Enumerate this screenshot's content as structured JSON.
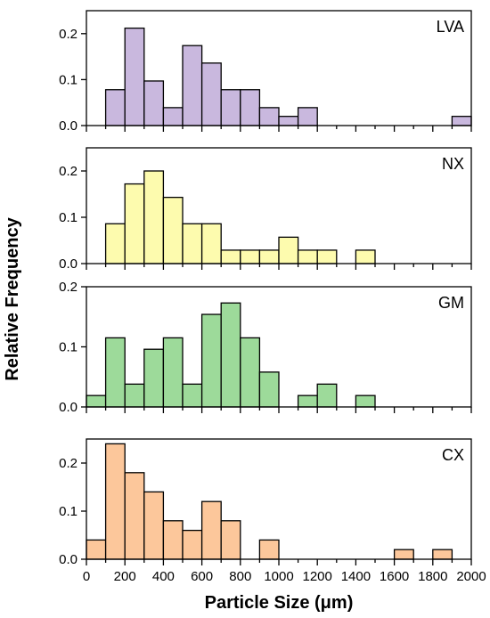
{
  "chart_data": {
    "type": "bar",
    "xlabel": "Particle Size (μm)",
    "ylabel": "Relative Frequency",
    "xlim": [
      0,
      2000
    ],
    "x_ticks": [
      "0",
      "200",
      "400",
      "600",
      "800",
      "1000",
      "1200",
      "1400",
      "1600",
      "1800",
      "2000"
    ],
    "bin_width": 100,
    "bin_starts": [
      0,
      100,
      200,
      300,
      400,
      500,
      600,
      700,
      800,
      900,
      1000,
      1100,
      1200,
      1300,
      1400,
      1500,
      1600,
      1700,
      1800,
      1900
    ],
    "grid": false,
    "legend": "none",
    "panels": [
      {
        "name": "LVA",
        "color": "#c9b8de",
        "ylim": [
          0,
          0.25
        ],
        "y_ticks": [
          "0.0",
          "0.1",
          "0.2"
        ],
        "values": [
          0,
          0.078,
          0.212,
          0.097,
          0.039,
          0.174,
          0.136,
          0.078,
          0.078,
          0.039,
          0.02,
          0.039,
          0,
          0,
          0,
          0,
          0,
          0,
          0,
          0.02
        ]
      },
      {
        "name": "NX",
        "color": "#fdfbae",
        "ylim": [
          0,
          0.25
        ],
        "y_ticks": [
          "0.0",
          "0.1",
          "0.2"
        ],
        "values": [
          0,
          0.086,
          0.172,
          0.2,
          0.143,
          0.086,
          0.086,
          0.029,
          0.029,
          0.029,
          0.057,
          0.029,
          0.029,
          0,
          0.029,
          0,
          0,
          0,
          0,
          0
        ]
      },
      {
        "name": "GM",
        "color": "#9dda9a",
        "ylim": [
          0,
          0.2
        ],
        "y_ticks": [
          "0.0",
          "0.1",
          "0.2"
        ],
        "values": [
          0.019,
          0.115,
          0.038,
          0.096,
          0.115,
          0.038,
          0.154,
          0.173,
          0.115,
          0.058,
          0,
          0.019,
          0.038,
          0,
          0.019,
          0,
          0,
          0,
          0,
          0
        ]
      },
      {
        "name": "CX",
        "color": "#fcc79b",
        "ylim": [
          0,
          0.25
        ],
        "y_ticks": [
          "0.0",
          "0.1",
          "0.2"
        ],
        "values": [
          0.04,
          0.24,
          0.18,
          0.14,
          0.08,
          0.06,
          0.12,
          0.08,
          0,
          0.04,
          0,
          0,
          0,
          0,
          0,
          0,
          0.02,
          0,
          0.02,
          0
        ]
      }
    ]
  }
}
